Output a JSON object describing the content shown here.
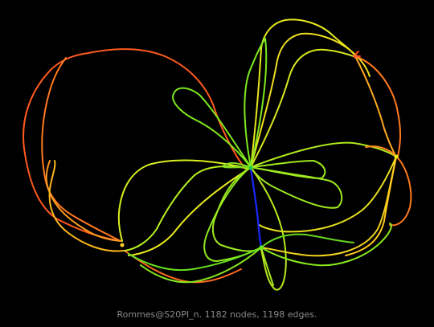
{
  "caption": "Rommes@S20PI_n. 1182 nodes, 1198 edges.",
  "background_color": "#000000",
  "caption_color": "#8a8a8a",
  "edge_color_scale": [
    "#0000ff",
    "#00ff00",
    "#ffff00",
    "#ff7f00",
    "#ff4000"
  ],
  "hubs": [
    {
      "name": "hub-center",
      "color": "#22cc44"
    },
    {
      "name": "hub-lower",
      "color": "#66ee22"
    },
    {
      "name": "hub-right",
      "color": "#eeee22"
    },
    {
      "name": "hub-top-right",
      "color": "#ff6a2a"
    },
    {
      "name": "hub-left-lower",
      "color": "#ffd22a"
    }
  ]
}
